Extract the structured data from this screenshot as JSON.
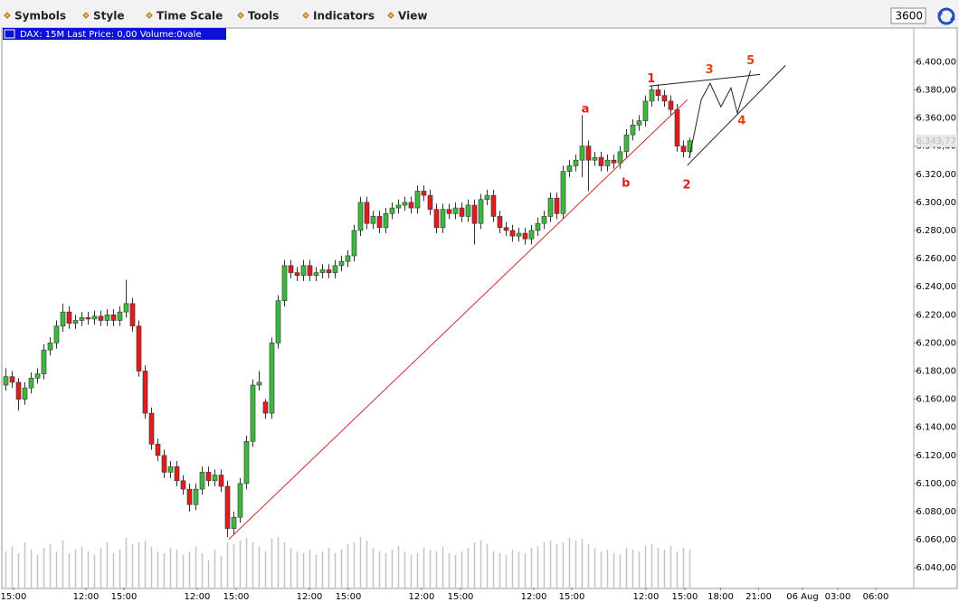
{
  "toolbar": {
    "menus": [
      "Symbols",
      "Style",
      "Time Scale",
      "Tools",
      "Indicators",
      "View"
    ],
    "interval": "3600"
  },
  "chart_data": {
    "type": "candlestick",
    "title": "DAX: 15M Last Price: 0,00 Volume:0vale",
    "x": [
      0,
      1,
      2,
      3,
      4,
      5,
      6,
      7,
      8,
      9,
      10,
      11,
      12,
      13,
      14,
      15,
      16,
      17,
      18,
      19,
      20,
      21,
      22,
      23,
      24,
      25,
      26,
      27,
      28,
      29,
      30,
      31,
      32,
      33,
      34,
      35,
      36,
      37,
      38,
      39,
      40,
      41,
      42,
      43,
      44,
      45,
      46,
      47,
      48,
      49,
      50,
      51,
      52,
      53,
      54,
      55,
      56,
      57,
      58,
      59,
      60,
      61,
      62,
      63,
      64,
      65,
      66,
      67,
      68,
      69,
      70,
      71,
      72,
      73,
      74,
      75,
      76,
      77,
      78,
      79,
      80,
      81,
      82,
      83,
      84,
      85,
      86,
      87,
      88,
      89,
      90,
      91,
      92,
      93,
      94,
      95,
      96,
      97,
      98,
      99,
      100,
      101,
      102,
      103,
      104,
      105,
      106,
      107,
      108
    ],
    "ohlc": [
      [
        6170,
        6182,
        6166,
        6176
      ],
      [
        6176,
        6180,
        6168,
        6172
      ],
      [
        6172,
        6175,
        6152,
        6160
      ],
      [
        6160,
        6172,
        6156,
        6168
      ],
      [
        6168,
        6179,
        6164,
        6175
      ],
      [
        6175,
        6182,
        6171,
        6178
      ],
      [
        6178,
        6199,
        6174,
        6195
      ],
      [
        6195,
        6204,
        6191,
        6200
      ],
      [
        6200,
        6216,
        6196,
        6212
      ],
      [
        6212,
        6228,
        6208,
        6222
      ],
      [
        6222,
        6226,
        6210,
        6214
      ],
      [
        6214,
        6220,
        6210,
        6216
      ],
      [
        6216,
        6222,
        6212,
        6218
      ],
      [
        6218,
        6222,
        6213,
        6217
      ],
      [
        6217,
        6223,
        6213,
        6219
      ],
      [
        6219,
        6223,
        6212,
        6216
      ],
      [
        6216,
        6224,
        6212,
        6220
      ],
      [
        6220,
        6224,
        6212,
        6216
      ],
      [
        6216,
        6226,
        6212,
        6222
      ],
      [
        6222,
        6245,
        6218,
        6228
      ],
      [
        6228,
        6232,
        6208,
        6212
      ],
      [
        6212,
        6216,
        6176,
        6180
      ],
      [
        6180,
        6184,
        6146,
        6150
      ],
      [
        6150,
        6154,
        6124,
        6128
      ],
      [
        6128,
        6132,
        6116,
        6120
      ],
      [
        6120,
        6124,
        6104,
        6108
      ],
      [
        6108,
        6116,
        6104,
        6112
      ],
      [
        6112,
        6116,
        6098,
        6102
      ],
      [
        6102,
        6106,
        6092,
        6096
      ],
      [
        6096,
        6100,
        6080,
        6085
      ],
      [
        6085,
        6100,
        6081,
        6096
      ],
      [
        6096,
        6112,
        6092,
        6108
      ],
      [
        6108,
        6112,
        6098,
        6102
      ],
      [
        6102,
        6110,
        6098,
        6106
      ],
      [
        6106,
        6110,
        6094,
        6098
      ],
      [
        6098,
        6102,
        6062,
        6068
      ],
      [
        6068,
        6080,
        6064,
        6076
      ],
      [
        6076,
        6104,
        6072,
        6100
      ],
      [
        6100,
        6134,
        6096,
        6130
      ],
      [
        6130,
        6174,
        6126,
        6170
      ],
      [
        6170,
        6180,
        6166,
        6172
      ],
      [
        6158,
        6160,
        6146,
        6150
      ],
      [
        6150,
        6204,
        6146,
        6200
      ],
      [
        6200,
        6234,
        6196,
        6230
      ],
      [
        6230,
        6259,
        6226,
        6255
      ],
      [
        6255,
        6259,
        6246,
        6250
      ],
      [
        6250,
        6254,
        6244,
        6248
      ],
      [
        6248,
        6259,
        6244,
        6255
      ],
      [
        6255,
        6259,
        6244,
        6248
      ],
      [
        6248,
        6254,
        6244,
        6250
      ],
      [
        6250,
        6256,
        6246,
        6252
      ],
      [
        6252,
        6256,
        6246,
        6250
      ],
      [
        6250,
        6259,
        6246,
        6255
      ],
      [
        6255,
        6262,
        6251,
        6258
      ],
      [
        6258,
        6266,
        6254,
        6262
      ],
      [
        6262,
        6284,
        6258,
        6280
      ],
      [
        6280,
        6304,
        6276,
        6300
      ],
      [
        6300,
        6304,
        6281,
        6285
      ],
      [
        6285,
        6294,
        6281,
        6290
      ],
      [
        6290,
        6294,
        6278,
        6282
      ],
      [
        6282,
        6296,
        6278,
        6292
      ],
      [
        6292,
        6300,
        6288,
        6296
      ],
      [
        6296,
        6302,
        6292,
        6298
      ],
      [
        6298,
        6304,
        6294,
        6300
      ],
      [
        6300,
        6304,
        6292,
        6296
      ],
      [
        6296,
        6312,
        6292,
        6308
      ],
      [
        6308,
        6312,
        6301,
        6305
      ],
      [
        6305,
        6309,
        6291,
        6295
      ],
      [
        6295,
        6299,
        6278,
        6282
      ],
      [
        6282,
        6299,
        6278,
        6295
      ],
      [
        6295,
        6299,
        6288,
        6292
      ],
      [
        6292,
        6300,
        6288,
        6296
      ],
      [
        6296,
        6300,
        6286,
        6290
      ],
      [
        6290,
        6302,
        6286,
        6298
      ],
      [
        6298,
        6302,
        6270,
        6285
      ],
      [
        6285,
        6306,
        6281,
        6302
      ],
      [
        6302,
        6309,
        6298,
        6305
      ],
      [
        6305,
        6309,
        6286,
        6290
      ],
      [
        6290,
        6294,
        6278,
        6282
      ],
      [
        6282,
        6286,
        6276,
        6280
      ],
      [
        6280,
        6284,
        6272,
        6276
      ],
      [
        6276,
        6282,
        6272,
        6278
      ],
      [
        6278,
        6282,
        6270,
        6274
      ],
      [
        6274,
        6284,
        6270,
        6280
      ],
      [
        6280,
        6289,
        6276,
        6285
      ],
      [
        6285,
        6294,
        6281,
        6290
      ],
      [
        6290,
        6307,
        6286,
        6303
      ],
      [
        6303,
        6307,
        6288,
        6292
      ],
      [
        6292,
        6326,
        6288,
        6322
      ],
      [
        6322,
        6330,
        6318,
        6326
      ],
      [
        6326,
        6334,
        6322,
        6330
      ],
      [
        6330,
        6362,
        6318,
        6340
      ],
      [
        6340,
        6344,
        6308,
        6330
      ],
      [
        6330,
        6336,
        6326,
        6332
      ],
      [
        6332,
        6336,
        6322,
        6326
      ],
      [
        6326,
        6334,
        6322,
        6330
      ],
      [
        6330,
        6334,
        6324,
        6328
      ],
      [
        6328,
        6340,
        6324,
        6336
      ],
      [
        6336,
        6352,
        6332,
        6348
      ],
      [
        6348,
        6359,
        6344,
        6355
      ],
      [
        6355,
        6362,
        6351,
        6358
      ],
      [
        6358,
        6376,
        6354,
        6372
      ],
      [
        6372,
        6383,
        6368,
        6380
      ],
      [
        6380,
        6384,
        6372,
        6376
      ],
      [
        6376,
        6380,
        6368,
        6372
      ],
      [
        6372,
        6376,
        6362,
        6366
      ],
      [
        6366,
        6370,
        6336,
        6340
      ],
      [
        6340,
        6344,
        6332,
        6336
      ],
      [
        6336,
        6346,
        6332,
        6343.77
      ]
    ],
    "volume": [
      40,
      45,
      38,
      50,
      42,
      36,
      44,
      48,
      40,
      52,
      38,
      42,
      45,
      40,
      36,
      44,
      50,
      38,
      42,
      55,
      48,
      50,
      52,
      45,
      40,
      38,
      44,
      42,
      36,
      40,
      45,
      38,
      30,
      42,
      35,
      50,
      48,
      52,
      55,
      50,
      45,
      40,
      54,
      56,
      50,
      44,
      40,
      38,
      42,
      36,
      40,
      44,
      38,
      42,
      48,
      50,
      56,
      52,
      44,
      40,
      38,
      42,
      46,
      40,
      36,
      38,
      44,
      42,
      40,
      45,
      38,
      36,
      40,
      44,
      50,
      52,
      48,
      40,
      38,
      36,
      42,
      40,
      38,
      44,
      46,
      50,
      52,
      48,
      50,
      55,
      52,
      54,
      48,
      44,
      40,
      42,
      38,
      36,
      44,
      42,
      40,
      46,
      48,
      44,
      42,
      46,
      40,
      44,
      42
    ],
    "vlim": [
      0,
      60
    ],
    "up_color": "#3cb83c",
    "down_color": "#e01c1c",
    "volume_color": "#c4c4c4",
    "xlim": [
      -0.5,
      143.36
    ],
    "xticks": [
      {
        "value": 1.21,
        "label": "15:00"
      },
      {
        "value": 12.64,
        "label": "12:00"
      },
      {
        "value": 18.64,
        "label": "15:00"
      },
      {
        "value": 30.21,
        "label": "12:00"
      },
      {
        "value": 36.36,
        "label": "15:00"
      },
      {
        "value": 47.93,
        "label": "12:00"
      },
      {
        "value": 54.07,
        "label": "15:00"
      },
      {
        "value": 65.64,
        "label": "12:00"
      },
      {
        "value": 71.79,
        "label": "15:00"
      },
      {
        "value": 83.36,
        "label": "12:00"
      },
      {
        "value": 89.36,
        "label": "15:00"
      },
      {
        "value": 101.07,
        "label": "12:00"
      },
      {
        "value": 107.21,
        "label": "15:00"
      },
      {
        "value": 112.86,
        "label": "18:00"
      },
      {
        "value": 118.86,
        "label": "21:00"
      },
      {
        "value": 125.79,
        "label": "06 Aug"
      },
      {
        "value": 131.36,
        "label": "03:00"
      },
      {
        "value": 137.36,
        "label": "06:00"
      }
    ],
    "ylim": [
      6026,
      6415
    ],
    "yticks": [
      {
        "value": 6040,
        "label": "6.040,00"
      },
      {
        "value": 6060,
        "label": "6.060,00"
      },
      {
        "value": 6080,
        "label": "6.080,00"
      },
      {
        "value": 6100,
        "label": "6.100,00"
      },
      {
        "value": 6120,
        "label": "6.120,00"
      },
      {
        "value": 6140,
        "label": "6.140,00"
      },
      {
        "value": 6160,
        "label": "6.160,00"
      },
      {
        "value": 6180,
        "label": "6.180,00"
      },
      {
        "value": 6200,
        "label": "6.200,00"
      },
      {
        "value": 6220,
        "label": "6.220,00"
      },
      {
        "value": 6240,
        "label": "6.240,00"
      },
      {
        "value": 6260,
        "label": "6.260,00"
      },
      {
        "value": 6280,
        "label": "6.280,00"
      },
      {
        "value": 6300,
        "label": "6.300,00"
      },
      {
        "value": 6320,
        "label": "6.320,00"
      },
      {
        "value": 6340,
        "label": "6.340,00"
      },
      {
        "value": 6360,
        "label": "6.360,00"
      },
      {
        "value": 6380,
        "label": "6.380,00"
      },
      {
        "value": 6400,
        "label": "6.400,00"
      }
    ],
    "last_price": {
      "value": 6343.77,
      "label": "6.343,77"
    },
    "drawings": [
      {
        "color": "#cc2a2a",
        "x": [
          35.2,
          107.6
        ],
        "y": [
          6060.3,
          6373
        ]
      },
      {
        "color": "#222222",
        "x": [
          101.6,
          119.1
        ],
        "y": [
          6382.7,
          6391
        ]
      },
      {
        "color": "#222222",
        "x": [
          107.6,
          123.1
        ],
        "y": [
          6326.3,
          6397.4
        ]
      },
      {
        "color": "#222222",
        "x": [
          107.9,
          109.8,
          111.2,
          112.9,
          114.5,
          115.5,
          117.6
        ],
        "y": [
          6331.4,
          6373,
          6384.6,
          6368,
          6381.4,
          6363.5,
          6393.6
        ]
      }
    ],
    "annotations": [
      {
        "text": "1",
        "color": "#dd2222",
        "x": 101.9,
        "y": 6387.8
      },
      {
        "text": "2",
        "color": "#dd2222",
        "x": 107.5,
        "y": 6312.2
      },
      {
        "text": "3",
        "color": "#e0441a",
        "x": 111.1,
        "y": 6394.2
      },
      {
        "text": "4",
        "color": "#e0441a",
        "x": 116.2,
        "y": 6357.7
      },
      {
        "text": "5",
        "color": "#e0441a",
        "x": 117.6,
        "y": 6400.6
      },
      {
        "text": "a",
        "color": "#dd2222",
        "x": 91.5,
        "y": 6366
      },
      {
        "text": "b",
        "color": "#dd2222",
        "x": 97.9,
        "y": 6313.5
      }
    ]
  }
}
